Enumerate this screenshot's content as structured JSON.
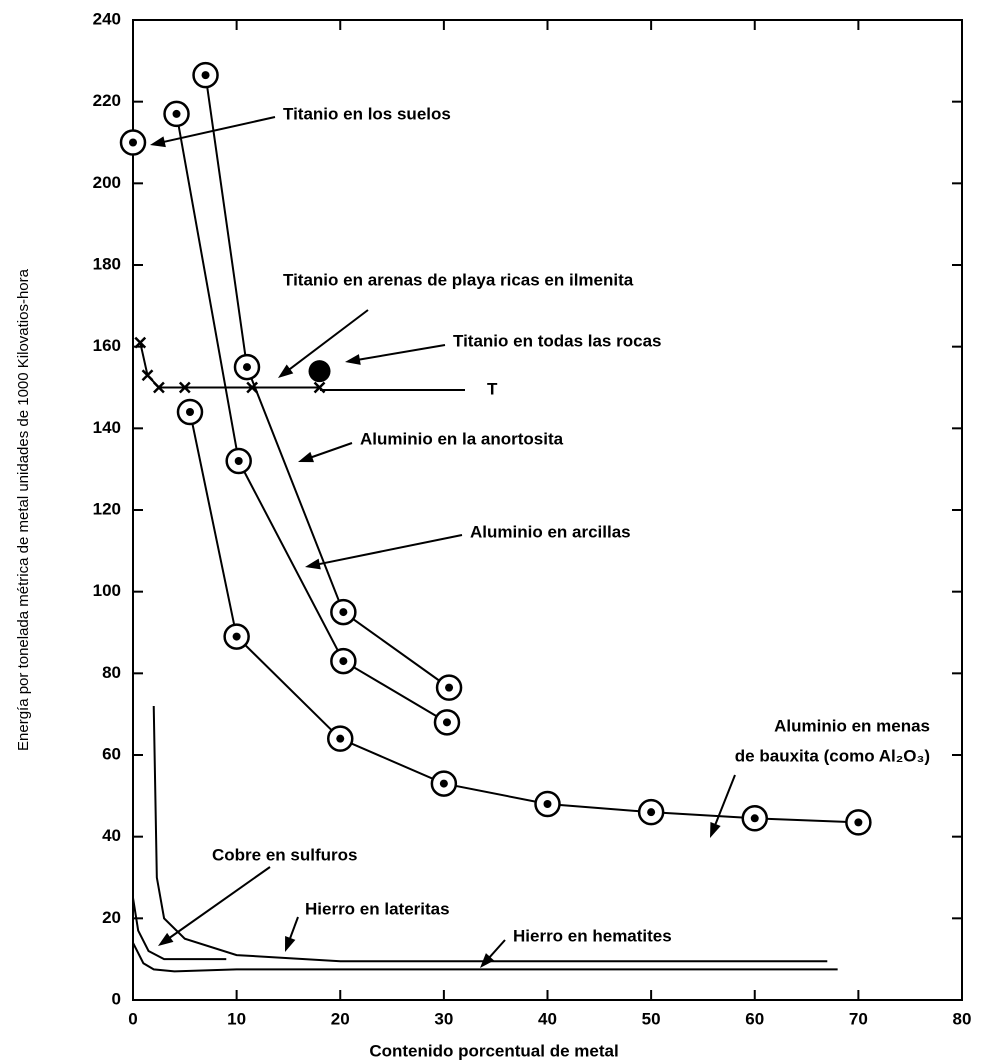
{
  "chart_data": {
    "type": "line",
    "xlabel": "Contenido porcentual de metal",
    "ylabel": "Energía por tonelada métrica de metal unidades de 1000 Kilovatios-hora",
    "xlim": [
      0,
      80
    ],
    "ylim": [
      0,
      240
    ],
    "xticks": [
      0,
      10,
      20,
      30,
      40,
      50,
      60,
      70,
      80
    ],
    "yticks": [
      0,
      20,
      40,
      60,
      80,
      100,
      120,
      140,
      160,
      180,
      200,
      220,
      240
    ],
    "color": "#000000",
    "series": [
      {
        "x": [
          7,
          11,
          20.3,
          30.5
        ],
        "values": [
          226.5,
          155,
          95,
          76.5
        ],
        "marker": "circle"
      },
      {
        "x": [
          4.2,
          10.2,
          20.3,
          30.3
        ],
        "values": [
          217,
          132,
          83,
          68
        ],
        "marker": "circle"
      },
      {
        "x": [
          5.5,
          10,
          20,
          30,
          40,
          50,
          60,
          70
        ],
        "values": [
          144,
          89,
          64,
          53,
          48,
          46,
          44.5,
          43.5
        ],
        "marker": "circle"
      },
      {
        "x": [
          0
        ],
        "values": [
          210
        ],
        "marker": "circle"
      },
      {
        "x": [
          18
        ],
        "values": [
          154
        ],
        "marker": "dot"
      },
      {
        "x": [
          0.7,
          1.4,
          2.5,
          5,
          11.5,
          18
        ],
        "values": [
          161,
          153,
          150,
          150,
          150,
          150
        ],
        "marker": "x"
      },
      {
        "x": [
          0,
          0.5,
          1.5,
          3,
          9
        ],
        "values": [
          25,
          17,
          12,
          10,
          10
        ],
        "marker": "none"
      },
      {
        "x": [
          0,
          1,
          2,
          4,
          10,
          68
        ],
        "values": [
          14,
          9,
          7.5,
          7,
          7.5,
          7.5
        ],
        "marker": "none"
      },
      {
        "x": [
          2,
          2.3,
          3,
          5,
          10,
          20,
          67
        ],
        "values": [
          72,
          30,
          20,
          15,
          11,
          9.5,
          9.5
        ],
        "marker": "none"
      }
    ],
    "annotations": [
      "Titanio en los suelos",
      "Titanio en arenas de playa ricas en ilmenita",
      "Titanio en todas las rocas",
      "T",
      "Aluminio en la anortosita",
      "Aluminio en arcillas",
      "Aluminio en menas",
      "de bauxita (como Al₂O₃)",
      "Cobre en sulfuros",
      "Hierro en lateritas",
      "Hierro en hematites"
    ]
  }
}
